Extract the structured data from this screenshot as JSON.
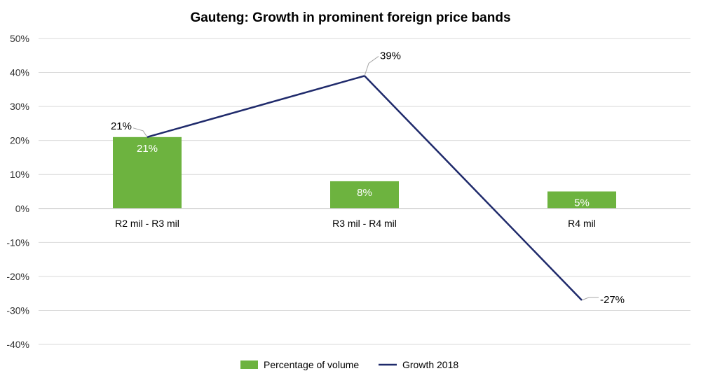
{
  "chart_data": {
    "type": "bar",
    "title": "Gauteng: Growth in prominent foreign price bands",
    "categories": [
      "R2 mil - R3 mil",
      "R3 mil - R4 mil",
      "R4 mil"
    ],
    "ylim": [
      -40,
      50
    ],
    "ytick_step": 10,
    "grid": true,
    "legend_position": "bottom",
    "series": [
      {
        "name": "Percentage of volume",
        "type": "bar",
        "color": "#6db33f",
        "values": [
          21,
          8,
          5
        ],
        "labels": [
          "21%",
          "8%",
          "5%"
        ]
      },
      {
        "name": "Growth 2018",
        "type": "line",
        "color": "#1f2a6b",
        "values": [
          21,
          39,
          -27
        ],
        "labels": [
          "21%",
          "39%",
          "-27%"
        ]
      }
    ]
  }
}
